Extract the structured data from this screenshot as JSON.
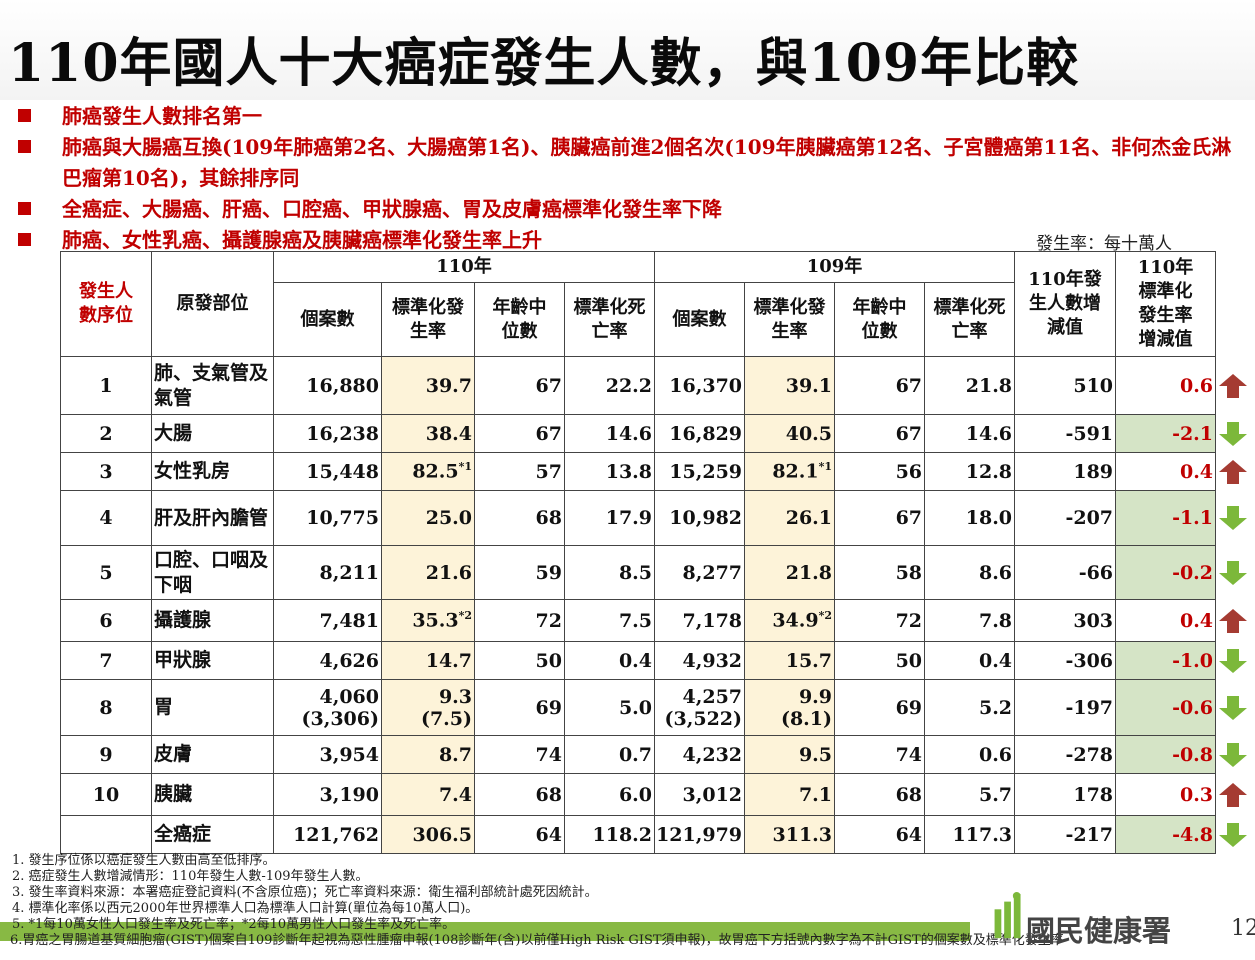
{
  "title": "110年國人十大癌症發生人數，與109年比較",
  "bullets": [
    "肺癌發生人數排名第一",
    "肺癌與大腸癌互換(109年肺癌第2名、大腸癌第1名)、胰臟癌前進2個名次(109年胰臟癌第12名、子宮體癌第11名、非何杰金氏淋巴瘤第10名)，其餘排序同",
    "全癌症、大腸癌、肝癌、口腔癌、甲狀腺癌、胃及皮膚癌標準化發生率下降",
    "肺癌、女性乳癌、攝護腺癌及胰臟癌標準化發生率上升"
  ],
  "unit_note": "發生率：每十萬人",
  "headers": {
    "rank": "發生人數序位",
    "site": "原發部位",
    "y110": "110年",
    "y109": "109年",
    "cases": "個案數",
    "std_rate": "標準化發生率",
    "median_age": "年齡中位數",
    "std_death": "標準化死亡率",
    "diff_cases": "110年發生人數增減值",
    "diff_rate": "110年標準化發生率增減值"
  },
  "rows": [
    {
      "rank": "1",
      "site": "肺、支氣管及氣管",
      "c110": "16,880",
      "r110": "39.7",
      "a110": "67",
      "d110": "22.2",
      "c109": "16,370",
      "r109": "39.1",
      "a109": "67",
      "d109": "21.8",
      "dc": "510",
      "dr": "0.6",
      "dir": "up"
    },
    {
      "rank": "2",
      "site": "大腸",
      "c110": "16,238",
      "r110": "38.4",
      "a110": "67",
      "d110": "14.6",
      "c109": "16,829",
      "r109": "40.5",
      "a109": "67",
      "d109": "14.6",
      "dc": "-591",
      "dr": "-2.1",
      "dir": "down"
    },
    {
      "rank": "3",
      "site": "女性乳房",
      "c110": "15,448",
      "r110": "82.5",
      "s110": "*1",
      "a110": "57",
      "d110": "13.8",
      "c109": "15,259",
      "r109": "82.1",
      "s109": "*1",
      "a109": "56",
      "d109": "12.8",
      "dc": "189",
      "dr": "0.4",
      "dir": "up"
    },
    {
      "rank": "4",
      "site": "肝及肝內膽管",
      "c110": "10,775",
      "r110": "25.0",
      "a110": "68",
      "d110": "17.9",
      "c109": "10,982",
      "r109": "26.1",
      "a109": "67",
      "d109": "18.0",
      "dc": "-207",
      "dr": "-1.1",
      "dir": "down"
    },
    {
      "rank": "5",
      "site": "口腔、口咽及下咽",
      "c110": "8,211",
      "r110": "21.6",
      "a110": "59",
      "d110": "8.5",
      "c109": "8,277",
      "r109": "21.8",
      "a109": "58",
      "d109": "8.6",
      "dc": "-66",
      "dr": "-0.2",
      "dir": "down"
    },
    {
      "rank": "6",
      "site": "攝護腺",
      "c110": "7,481",
      "r110": "35.3",
      "s110": "*2",
      "a110": "72",
      "d110": "7.5",
      "c109": "7,178",
      "r109": "34.9",
      "s109": "*2",
      "a109": "72",
      "d109": "7.8",
      "dc": "303",
      "dr": "0.4",
      "dir": "up"
    },
    {
      "rank": "7",
      "site": "甲狀腺",
      "c110": "4,626",
      "r110": "14.7",
      "a110": "50",
      "d110": "0.4",
      "c109": "4,932",
      "r109": "15.7",
      "a109": "50",
      "d109": "0.4",
      "dc": "-306",
      "dr": "-1.0",
      "dir": "down"
    },
    {
      "rank": "8",
      "site": "胃",
      "c110": "4,060",
      "c110b": "(3,306)",
      "r110": "9.3",
      "r110b": "(7.5)",
      "a110": "69",
      "d110": "5.0",
      "c109": "4,257",
      "c109b": "(3,522)",
      "r109": "9.9",
      "r109b": "(8.1)",
      "a109": "69",
      "d109": "5.2",
      "dc": "-197",
      "dr": "-0.6",
      "dir": "down"
    },
    {
      "rank": "9",
      "site": "皮膚",
      "c110": "3,954",
      "r110": "8.7",
      "a110": "74",
      "d110": "0.7",
      "c109": "4,232",
      "r109": "9.5",
      "a109": "74",
      "d109": "0.6",
      "dc": "-278",
      "dr": "-0.8",
      "dir": "down"
    },
    {
      "rank": "10",
      "site": "胰臟",
      "c110": "3,190",
      "r110": "7.4",
      "a110": "68",
      "d110": "6.0",
      "c109": "3,012",
      "r109": "7.1",
      "a109": "68",
      "d109": "5.7",
      "dc": "178",
      "dr": "0.3",
      "dir": "up"
    },
    {
      "rank": "",
      "site": "全癌症",
      "c110": "121,762",
      "r110": "306.5",
      "a110": "64",
      "d110": "118.2",
      "c109": "121,979",
      "r109": "311.3",
      "a109": "64",
      "d109": "117.3",
      "dc": "-217",
      "dr": "-4.8",
      "dir": "down"
    }
  ],
  "footnotes": [
    "1. 發生序位係以癌症發生人數由高至低排序。",
    "2. 癌症發生人數增減情形：110年發生人數-109年發生人數。",
    "3. 發生率資料來源：本署癌症登記資料(不含原位癌)；死亡率資料來源：衛生福利部統計處死因統計。",
    "4. 標準化率係以西元2000年世界標準人口為標準人口計算(單位為每10萬人口)。",
    "5. *1每10萬女性人口發生率及死亡率；*2每10萬男性人口發生率及死亡率。",
    "6.胃癌之胃腸道基質細胞瘤(GIST)個案自109診斷年起視為惡性腫瘤申報(108診斷年(含)以前僅High Risk GIST須申報)，故胃癌下方括號內數字為不計GIST的個案數及標準化發生率"
  ],
  "logo_text": "國民健康署",
  "page_number": "12",
  "colors": {
    "accent_red": "#c00000",
    "highlight": "#fdf3d9",
    "decrease_cell": "#d5e4c6",
    "up_arrow": "#a53b32",
    "down_arrow": "#7cb83a",
    "green_bar": "#88b944"
  }
}
